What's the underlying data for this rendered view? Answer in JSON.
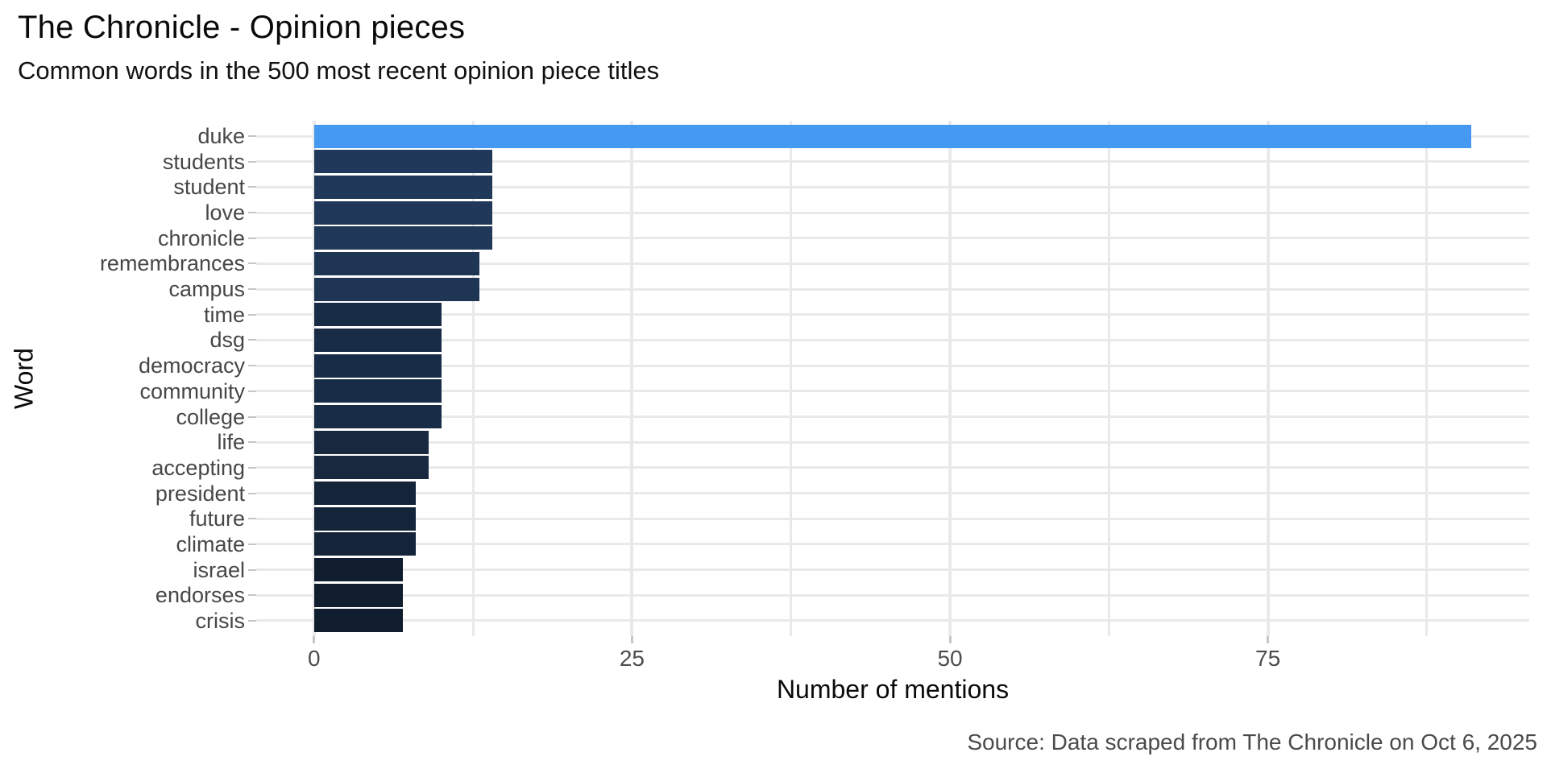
{
  "header": {
    "title": "The Chronicle - Opinion pieces",
    "subtitle": "Common words in the 500 most recent opinion piece titles"
  },
  "caption": {
    "source": "Source: Data scraped from The Chronicle on Oct 6, 2025"
  },
  "chart_data": {
    "type": "bar",
    "orientation": "horizontal",
    "title": "The Chronicle - Opinion pieces",
    "subtitle": "Common words in the 500 most recent opinion piece titles",
    "xlabel": "Number of mentions",
    "ylabel": "Word",
    "categories": [
      "duke",
      "students",
      "student",
      "love",
      "chronicle",
      "remembrances",
      "campus",
      "time",
      "dsg",
      "democracy",
      "community",
      "college",
      "life",
      "accepting",
      "president",
      "future",
      "climate",
      "israel",
      "endorses",
      "crisis"
    ],
    "values": [
      91,
      14,
      14,
      14,
      14,
      13,
      13,
      10,
      10,
      10,
      10,
      10,
      9,
      9,
      8,
      8,
      8,
      7,
      7,
      7
    ],
    "bar_colors": [
      "#4699f0",
      "#20395a",
      "#20395a",
      "#20395a",
      "#20395a",
      "#1e3553",
      "#1e3553",
      "#192c45",
      "#192c45",
      "#192c45",
      "#192c45",
      "#192c45",
      "#17283f",
      "#17283f",
      "#142439",
      "#142439",
      "#142439",
      "#0f1d2f",
      "#0f1d2f",
      "#0f1d2f"
    ],
    "x_ticks": [
      0,
      25,
      50,
      75
    ],
    "x_minor_ticks": [
      12.5,
      37.5,
      62.5,
      87.5
    ],
    "xlim": [
      -4.55,
      95.55
    ],
    "grid": true,
    "legend": "none",
    "highlight": {
      "category": "duke",
      "color": "#4699f0"
    },
    "colors": {
      "highlight_blue": "#4699f0",
      "bar_dark_max": "#20395a",
      "bar_dark_min": "#0f1d2f",
      "grid": "#e9e9e9",
      "tick_mark": "#c6c6c6",
      "axis_text": "#4d4d4d",
      "category_text": "#474747",
      "title_text": "#0a0a0a",
      "caption_text": "#4a4a4a",
      "background": "#ffffff"
    }
  }
}
